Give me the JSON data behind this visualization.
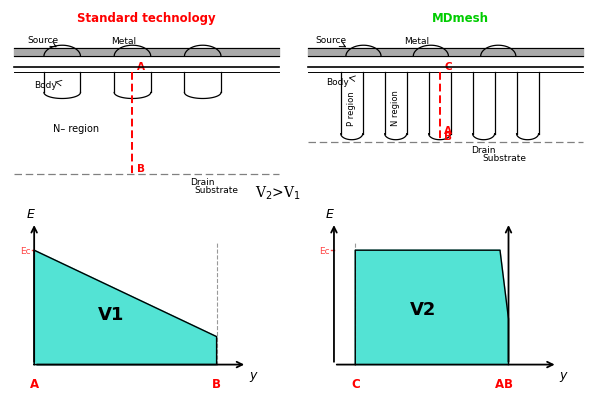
{
  "title_left": "Standard technology",
  "title_right": "MDmesh",
  "title_left_color": "#ff0000",
  "title_right_color": "#00cc00",
  "fill_color": "#40e0d0",
  "fill_alpha": 0.9,
  "v2v1_text": "V$_2$>V$_1$",
  "v1_label": "V1",
  "v2_label": "V2",
  "ec_color": "#ff4444",
  "axis_label_color": "#ff0000",
  "bg_color": "#ffffff",
  "top_bg": "#f8f8f8"
}
